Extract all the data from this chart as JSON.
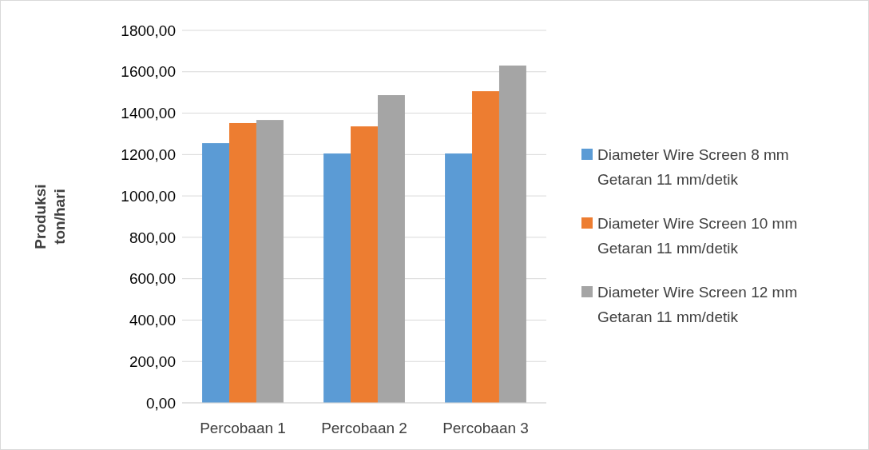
{
  "chart_data": {
    "type": "bar",
    "ylabel": "Produksi ton/hari",
    "categories": [
      "Percobaan 1",
      "Percobaan 2",
      "Percobaan 3"
    ],
    "series": [
      {
        "name": "Diameter Wire Screen 8 mm Getaran 11 mm/detik",
        "color": "#5b9bd5",
        "values": [
          1255,
          1205,
          1205
        ]
      },
      {
        "name": "Diameter Wire Screen 10 mm Getaran 11 mm/detik",
        "color": "#ed7d31",
        "values": [
          1352,
          1336,
          1506
        ]
      },
      {
        "name": "Diameter Wire Screen 12 mm Getaran 11 mm/detik",
        "color": "#a5a5a5",
        "values": [
          1367,
          1487,
          1630
        ]
      }
    ],
    "ylim": [
      0,
      1800
    ],
    "yticks": [
      {
        "value": 0,
        "label": "0,00"
      },
      {
        "value": 200,
        "label": "200,00"
      },
      {
        "value": 400,
        "label": "400,00"
      },
      {
        "value": 600,
        "label": "600,00"
      },
      {
        "value": 800,
        "label": "800,00"
      },
      {
        "value": 1000,
        "label": "1000,00"
      },
      {
        "value": 1200,
        "label": "1200,00"
      },
      {
        "value": 1400,
        "label": "1400,00"
      },
      {
        "value": 1600,
        "label": "1600,00"
      },
      {
        "value": 1800,
        "label": "1800,00"
      }
    ],
    "grid": "y",
    "legend": "right"
  }
}
